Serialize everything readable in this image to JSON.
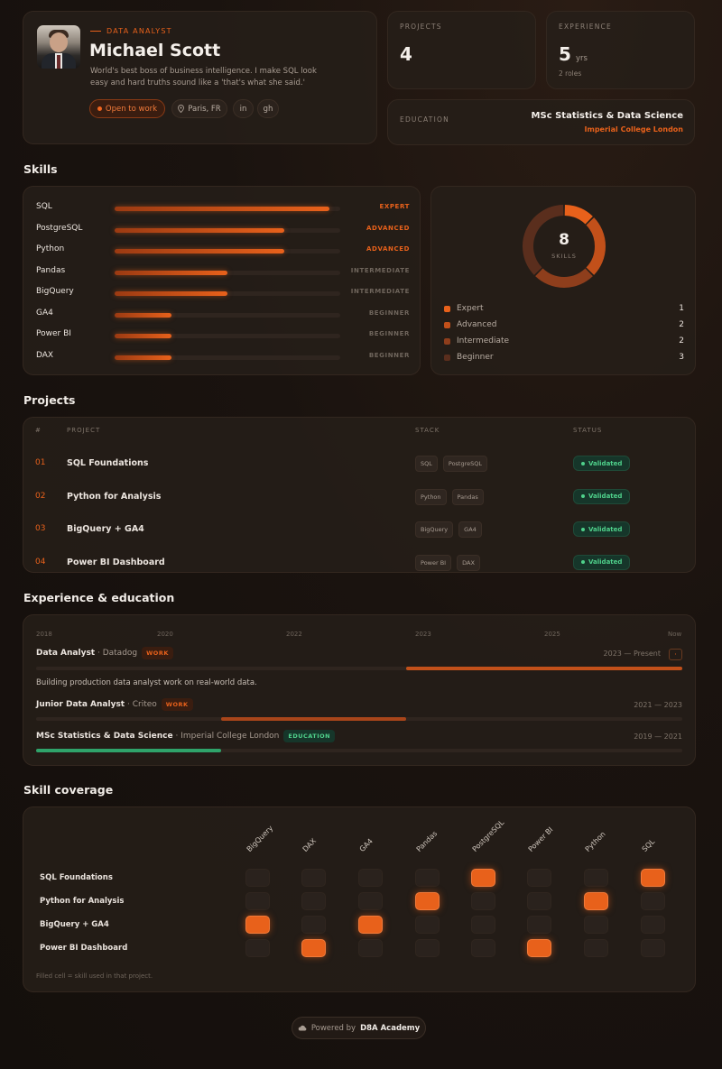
{
  "profile": {
    "role": "DATA ANALYST",
    "name": "Michael Scott",
    "bio": "World's best boss of business intelligence. I make SQL look easy and hard truths sound like a 'that's what she said.'",
    "status": "Open to work",
    "location": "Paris, FR",
    "links": [
      "in",
      "gh"
    ]
  },
  "stats": {
    "projects_label": "PROJECTS",
    "projects_value": "4",
    "experience_label": "EXPERIENCE",
    "experience_value": "5",
    "experience_unit": "yrs",
    "experience_sub": "2 roles",
    "education_label": "EDUCATION",
    "education_degree": "MSc Statistics & Data Science",
    "education_school": "Imperial College London"
  },
  "skills": {
    "title": "Skills",
    "items": [
      {
        "name": "SQL",
        "level": "EXPERT",
        "fill": 0.95
      },
      {
        "name": "PostgreSQL",
        "level": "ADVANCED",
        "fill": 0.75
      },
      {
        "name": "Python",
        "level": "ADVANCED",
        "fill": 0.75
      },
      {
        "name": "Pandas",
        "level": "INTERMEDIATE",
        "fill": 0.5
      },
      {
        "name": "BigQuery",
        "level": "INTERMEDIATE",
        "fill": 0.5
      },
      {
        "name": "GA4",
        "level": "BEGINNER",
        "fill": 0.25
      },
      {
        "name": "Power BI",
        "level": "BEGINNER",
        "fill": 0.25
      },
      {
        "name": "DAX",
        "level": "BEGINNER",
        "fill": 0.25
      }
    ],
    "donut": {
      "total": "8",
      "label": "SKILLS",
      "legend": [
        {
          "name": "Expert",
          "count": "1",
          "color": "#e8611b"
        },
        {
          "name": "Advanced",
          "count": "2",
          "color": "#c2501a"
        },
        {
          "name": "Intermediate",
          "count": "2",
          "color": "#8e3e1c"
        },
        {
          "name": "Beginner",
          "count": "3",
          "color": "#5a2e1d"
        }
      ]
    }
  },
  "projects": {
    "title": "Projects",
    "headers": {
      "num": "#",
      "project": "PROJECT",
      "stack": "STACK",
      "status": "STATUS"
    },
    "rows": [
      {
        "num": "01",
        "name": "SQL Foundations",
        "stack": [
          "SQL",
          "PostgreSQL"
        ],
        "status": "Validated"
      },
      {
        "num": "02",
        "name": "Python for Analysis",
        "stack": [
          "Python",
          "Pandas"
        ],
        "status": "Validated"
      },
      {
        "num": "03",
        "name": "BigQuery + GA4",
        "stack": [
          "BigQuery",
          "GA4"
        ],
        "status": "Validated"
      },
      {
        "num": "04",
        "name": "Power BI Dashboard",
        "stack": [
          "Power BI",
          "DAX"
        ],
        "status": "Validated"
      }
    ]
  },
  "experience": {
    "title": "Experience & education",
    "years": [
      "2018",
      "2020",
      "2022",
      "2023",
      "2025",
      "Now"
    ],
    "entries": [
      {
        "title": "Data Analyst",
        "org": "· Datadog",
        "badge": "WORK",
        "dates": "2023 — Present",
        "desc": "Building production data analyst work on real-world data.",
        "start": 0.573,
        "end": 1.0,
        "color": "#c2501a"
      },
      {
        "title": "Junior Data Analyst",
        "org": "· Criteo",
        "badge": "WORK",
        "dates": "2021 — 2023",
        "start": 0.286,
        "end": 0.573,
        "color": "#a8451a"
      },
      {
        "title": "MSc Statistics & Data Science",
        "org": "· Imperial College London",
        "badge": "EDUCATION",
        "dates": "2019 — 2021",
        "start": 0.0,
        "end": 0.286,
        "color": "#2fa36a"
      }
    ]
  },
  "coverage": {
    "title": "Skill coverage",
    "columns": [
      "BigQuery",
      "DAX",
      "GA4",
      "Pandas",
      "PostgreSQL",
      "Power BI",
      "Python",
      "SQL"
    ],
    "rows": [
      {
        "name": "SQL Foundations",
        "cells": [
          0,
          0,
          0,
          0,
          1,
          0,
          0,
          1
        ]
      },
      {
        "name": "Python for Analysis",
        "cells": [
          0,
          0,
          0,
          1,
          0,
          0,
          1,
          0
        ]
      },
      {
        "name": "BigQuery + GA4",
        "cells": [
          1,
          0,
          1,
          0,
          0,
          0,
          0,
          0
        ]
      },
      {
        "name": "Power BI Dashboard",
        "cells": [
          0,
          1,
          0,
          0,
          0,
          1,
          0,
          0
        ]
      }
    ],
    "note": "Filled cell = skill used in that project."
  },
  "footer": {
    "prefix": "Powered by",
    "brand": "D8A Academy"
  }
}
